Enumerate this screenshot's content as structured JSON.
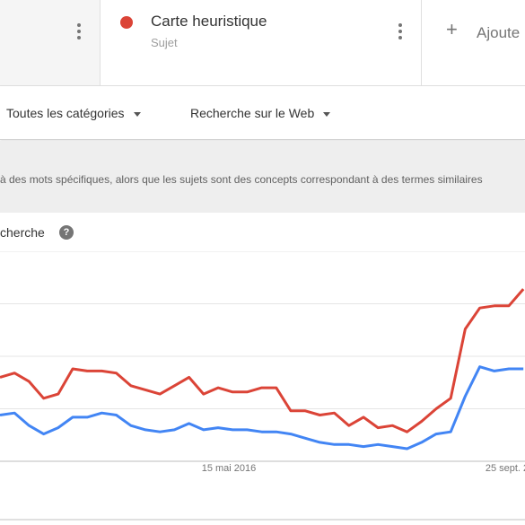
{
  "header": {
    "term": {
      "title": "Carte heuristique",
      "type": "Sujet",
      "color": "#db4437"
    },
    "add": {
      "icon": "plus-icon",
      "label": "Ajoute"
    }
  },
  "filters": {
    "category": "Toutes les catégories",
    "search_type": "Recherche sur le Web"
  },
  "notice": {
    "text": "à des mots spécifiques, alors que les sujets sont des concepts correspondant à des termes similaires"
  },
  "chart_section": {
    "title": "cherche",
    "help_icon": "help-icon"
  },
  "chart_data": {
    "type": "line",
    "title": "",
    "xlabel": "",
    "ylabel": "",
    "x_tick_labels": [
      "15 mai 2016",
      "25 sept. 2"
    ],
    "series": [
      {
        "name": "Carte heuristique",
        "color": "#db4437",
        "values": [
          40,
          42,
          38,
          30,
          32,
          44,
          43,
          43,
          42,
          36,
          34,
          32,
          36,
          40,
          32,
          35,
          33,
          33,
          35,
          35,
          24,
          24,
          22,
          23,
          17,
          21,
          16,
          17,
          14,
          19,
          25,
          30,
          63,
          73,
          74,
          74,
          82
        ]
      },
      {
        "name": "",
        "color": "#4285f4",
        "values": [
          22,
          23,
          17,
          13,
          16,
          21,
          21,
          23,
          22,
          17,
          15,
          14,
          15,
          18,
          15,
          16,
          15,
          15,
          14,
          14,
          13,
          11,
          9,
          8,
          8,
          7,
          8,
          7,
          6,
          9,
          13,
          14,
          31,
          45,
          43,
          44,
          44
        ]
      }
    ]
  }
}
